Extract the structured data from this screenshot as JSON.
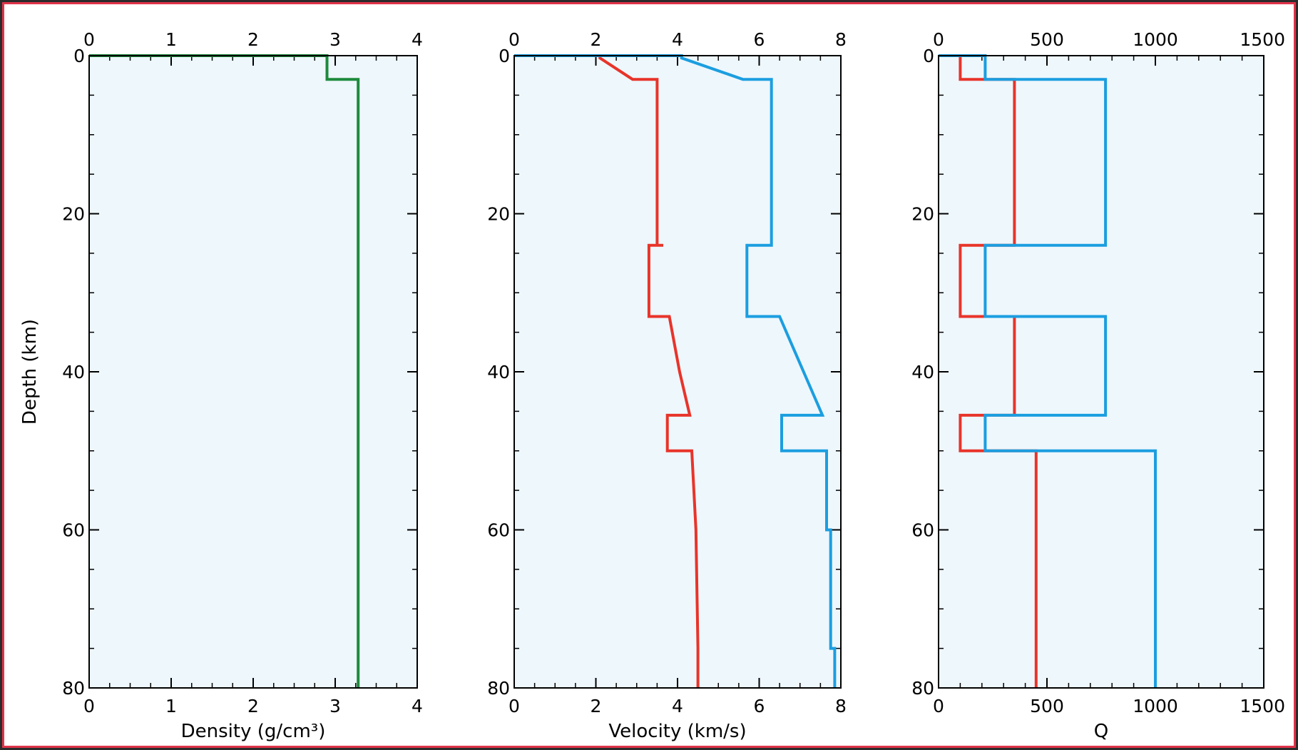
{
  "chart_data": [
    {
      "type": "line",
      "xlabel": "Density (g/cm³)",
      "ylabel": "Depth (km)",
      "xlim": [
        0,
        4
      ],
      "ylim": [
        0,
        80
      ],
      "y_inverted": true,
      "x_ticks": [
        0,
        1,
        2,
        3,
        4
      ],
      "y_ticks": [
        0,
        20,
        40,
        60,
        80
      ],
      "background": "#eef7fc",
      "series": [
        {
          "color": "#1e8a3c",
          "x": [
            0,
            2.9,
            2.9,
            3.28,
            3.28
          ],
          "y": [
            0,
            0,
            3,
            3,
            80
          ]
        }
      ]
    },
    {
      "type": "line",
      "xlabel": "Velocity (km/s)",
      "ylabel": "",
      "xlim": [
        0,
        8
      ],
      "ylim": [
        0,
        80
      ],
      "y_inverted": true,
      "x_ticks": [
        0,
        2,
        4,
        6,
        8
      ],
      "y_ticks": [
        0,
        20,
        40,
        60,
        80
      ],
      "background": "#eef7fc",
      "series": [
        {
          "color": "#e8342a",
          "x": [
            0,
            2.1,
            2.1,
            2.9,
            2.9,
            3.5,
            3.5,
            3.65,
            3.65,
            3.3,
            3.3,
            3.8,
            3.8,
            4.05,
            4.05,
            4.3,
            4.3,
            3.75,
            3.75,
            4.35,
            4.35,
            4.45,
            4.45,
            4.5,
            4.5
          ],
          "y": [
            0,
            0,
            0.3,
            3,
            3,
            3,
            24,
            24,
            24,
            24,
            33,
            33,
            33,
            40,
            40,
            45.5,
            45.5,
            45.5,
            50,
            50,
            50,
            60,
            60,
            75,
            80
          ]
        },
        {
          "color": "#1b9ee0",
          "x": [
            0,
            4.1,
            4.1,
            5.6,
            5.6,
            6.3,
            6.3,
            5.7,
            5.7,
            6.5,
            6.5,
            7.55,
            7.55,
            6.55,
            6.55,
            7.65,
            7.65,
            7.75,
            7.75,
            7.85,
            7.85
          ],
          "y": [
            0,
            0,
            0.3,
            3,
            3,
            3,
            24,
            24,
            33,
            33,
            33,
            45.5,
            45.5,
            45.5,
            50,
            50,
            60,
            60,
            75,
            75,
            80
          ]
        }
      ]
    },
    {
      "type": "line",
      "xlabel": "Q",
      "ylabel": "",
      "xlim": [
        0,
        1500
      ],
      "ylim": [
        0,
        80
      ],
      "y_inverted": true,
      "x_ticks": [
        0,
        500,
        1000,
        1500
      ],
      "x_tick_labels": [
        "0",
        "500",
        "1000",
        "1500"
      ],
      "y_ticks": [
        0,
        20,
        40,
        60,
        80
      ],
      "background": "#eef7fc",
      "series": [
        {
          "color": "#e8342a",
          "x": [
            100,
            100,
            350,
            350,
            100,
            100,
            350,
            350,
            100,
            100,
            450,
            450
          ],
          "y": [
            0,
            3,
            3,
            24,
            24,
            33,
            33,
            45.5,
            45.5,
            50,
            50,
            80
          ]
        },
        {
          "color": "#1b9ee0",
          "x": [
            0,
            215,
            215,
            770,
            770,
            215,
            215,
            770,
            770,
            215,
            215,
            1000,
            1000
          ],
          "y": [
            0,
            0,
            3,
            3,
            24,
            24,
            33,
            33,
            45.5,
            45.5,
            50,
            50,
            80
          ]
        }
      ]
    }
  ]
}
